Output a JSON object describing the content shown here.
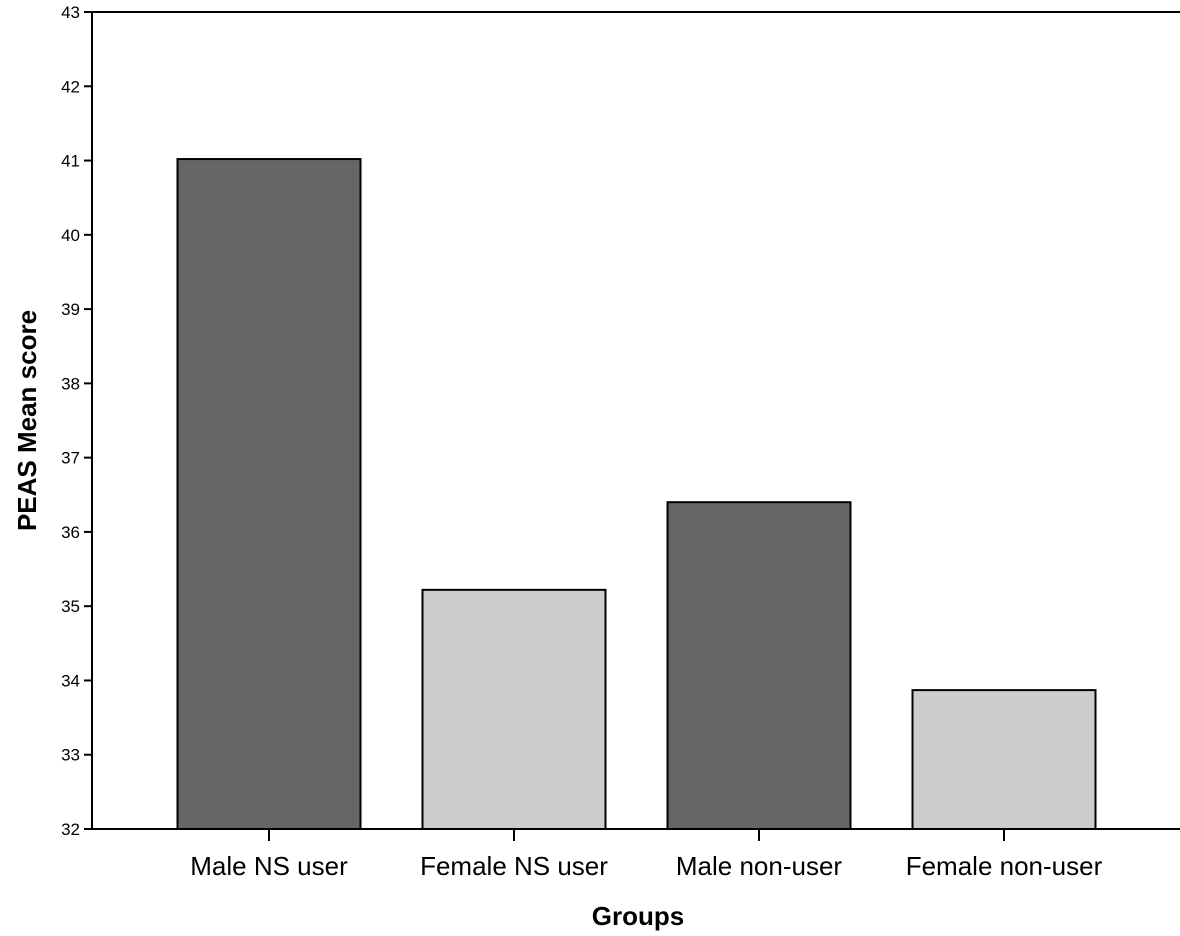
{
  "chart_data": {
    "type": "bar",
    "categories": [
      "Male NS user",
      "Female NS user",
      "Male non-user",
      "Female non-user"
    ],
    "values": [
      41.02,
      35.22,
      36.4,
      33.87
    ],
    "xlabel": "Groups",
    "ylabel": "PEAS Mean score",
    "ylim": [
      32,
      43
    ],
    "yticks": [
      32,
      33,
      34,
      35,
      36,
      37,
      38,
      39,
      40,
      41,
      42,
      43
    ],
    "grid": false,
    "legend": "none",
    "bar_colors": [
      "#666666",
      "#cccccc",
      "#666666",
      "#cccccc"
    ],
    "edge_color": "#000000"
  }
}
